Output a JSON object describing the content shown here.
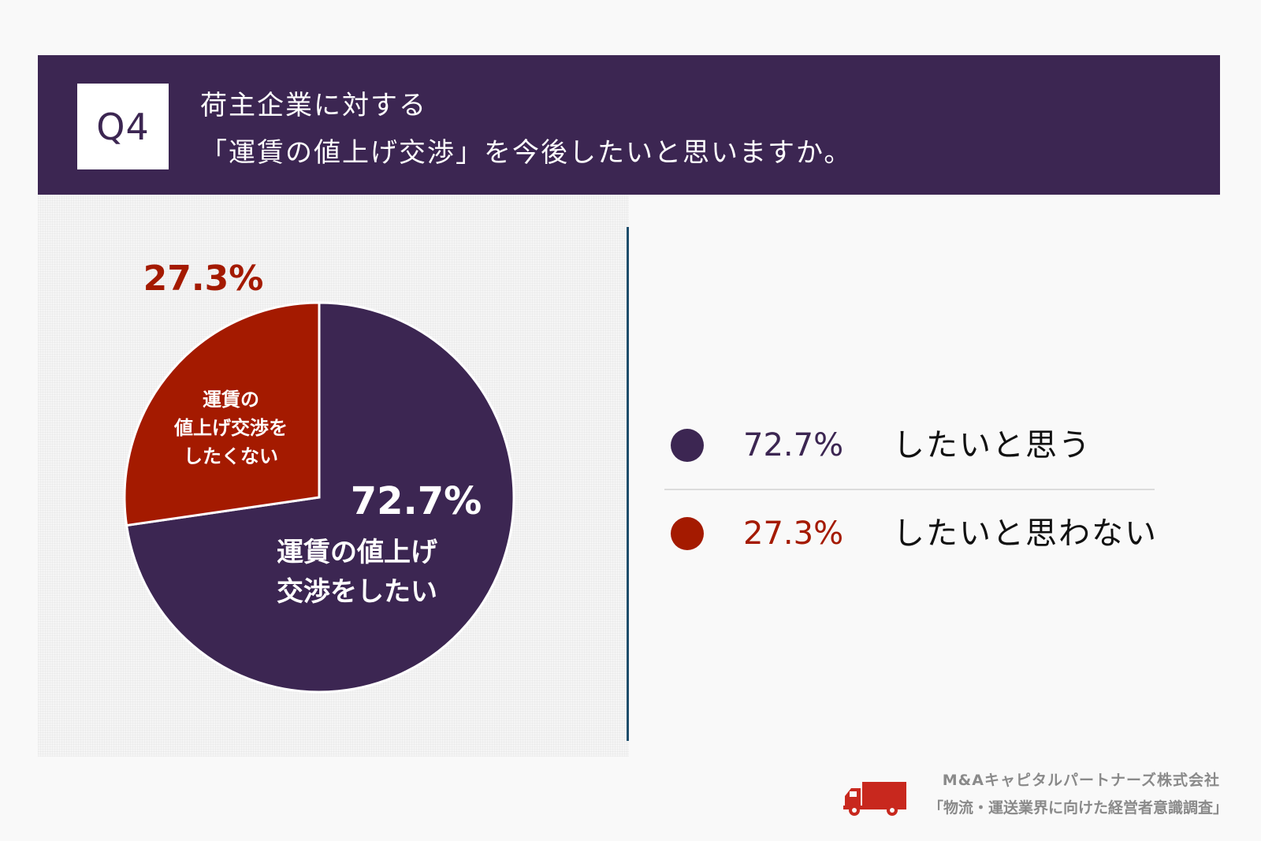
{
  "header": {
    "badge": "Q4",
    "title_line1": "荷主企業に対する",
    "title_line2": "「運賃の値上げ交渉」を今後したいと思いますか。"
  },
  "colors": {
    "header_bg": "#3c2652",
    "want": "#3c2652",
    "not_want": "#a41a00",
    "divider": "#1e4d6b"
  },
  "chart_data": {
    "type": "pie",
    "slices": [
      {
        "label_line1": "運賃の値上げ",
        "label_line2": "交渉をしたい",
        "value": 72.7,
        "display": "72.7%",
        "color": "#3c2652"
      },
      {
        "label_lines": [
          "運賃の",
          "値上げ交渉を",
          "したくない"
        ],
        "value": 27.3,
        "display": "27.3%",
        "color": "#a41a00"
      }
    ]
  },
  "legend": [
    {
      "pct": "72.7%",
      "label": "したいと思う",
      "color": "#3c2652"
    },
    {
      "pct": "27.3%",
      "label": "したいと思わない",
      "color": "#a41a00"
    }
  ],
  "footer": {
    "company": "M&Aキャピタルパートナーズ株式会社",
    "survey": "「物流・運送業界に向けた経営者意識調査」",
    "icon": "truck-icon"
  }
}
